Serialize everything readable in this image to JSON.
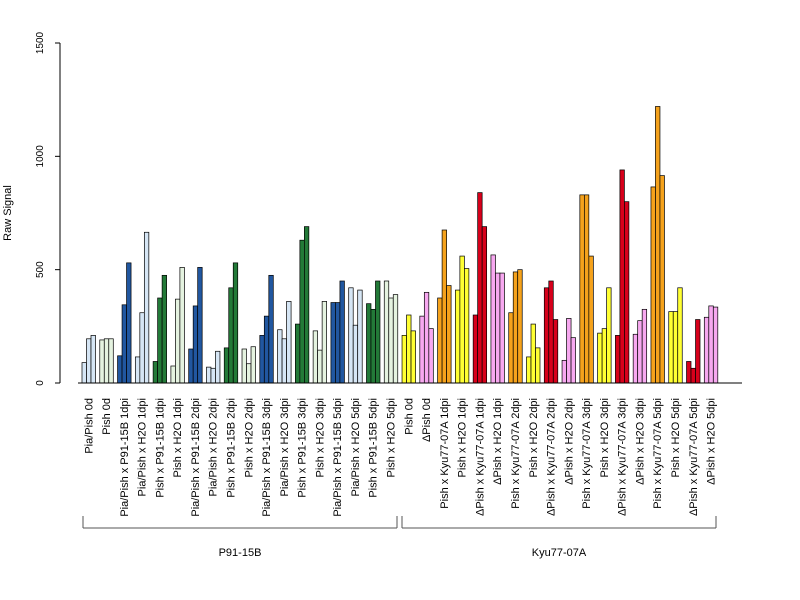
{
  "chart_data": {
    "type": "bar",
    "title": "",
    "xlabel": "",
    "ylabel": "Raw Signal",
    "ylim": [
      0,
      1500
    ],
    "yticks": [
      0,
      500,
      1000,
      1500
    ],
    "grid": false,
    "categories": [
      "Pia/Pish 0d",
      "Pish 0d",
      "Pia/Pish x P91-15B 1dpi",
      "Pia/Pish x H2O 1dpi",
      "Pish x P91-15B 1dpi",
      "Pish x H2O 1dpi",
      "Pia/Pish x P91-15B 2dpi",
      "Pia/Pish x H2O 2dpi",
      "Pish x P91-15B 2dpi",
      "Pish x H2O 2dpi",
      "Pia/Pish x P91-15B 3dpi",
      "Pia/Pish x H2O 3dpi",
      "Pish x P91-15B 3dpi",
      "Pish x H2O 3dpi",
      "Pia/Pish x P91-15B 5dpi",
      "Pia/Pish x H2O 5dpi",
      "Pish x P91-15B 5dpi",
      "Pish x H2O 5dpi",
      "Pish 0d",
      "ΔPish 0d",
      "Pish x Kyu77-07A 1dpi",
      "Pish x H2O 1dpi",
      "ΔPish x Kyu77-07A 1dpi",
      "ΔPish x H2O 1dpi",
      "Pish x Kyu77-07A 2dpi",
      "Pish x H2O 2dpi",
      "ΔPish x Kyu77-07A 2dpi",
      "ΔPish x H2O 2dpi",
      "Pish x Kyu77-07A 3dpi",
      "Pish x H2O 3dpi",
      "ΔPish x Kyu77-07A 3dpi",
      "ΔPish x H2O 3dpi",
      "Pish x Kyu77-07A 5dpi",
      "Pish x H2O 5dpi",
      "ΔPish x Kyu77-07A 5dpi",
      "ΔPish x H2O 5dpi"
    ],
    "colors": [
      "#d6e6f5",
      "#e5f3e0",
      "#2157a0",
      "#d6e6f5",
      "#237a38",
      "#e5f3e0",
      "#2157a0",
      "#d6e6f5",
      "#237a38",
      "#e5f3e0",
      "#2157a0",
      "#d6e6f5",
      "#237a38",
      "#e5f3e0",
      "#2157a0",
      "#d6e6f5",
      "#237a38",
      "#e5f3e0",
      "#ffff33",
      "#f7a8f0",
      "#f5a21c",
      "#ffff33",
      "#d7001b",
      "#f7a8f0",
      "#f5a21c",
      "#ffff33",
      "#d7001b",
      "#f7a8f0",
      "#f5a21c",
      "#ffff33",
      "#d7001b",
      "#f7a8f0",
      "#f5a21c",
      "#ffff33",
      "#d7001b",
      "#f7a8f0"
    ],
    "values": [
      [
        90,
        195,
        210
      ],
      [
        190,
        195,
        195
      ],
      [
        120,
        345,
        530
      ],
      [
        115,
        310,
        665
      ],
      [
        95,
        375,
        475
      ],
      [
        75,
        370,
        510
      ],
      [
        150,
        340,
        510
      ],
      [
        70,
        65,
        140
      ],
      [
        155,
        420,
        530
      ],
      [
        150,
        85,
        160
      ],
      [
        210,
        295,
        475
      ],
      [
        235,
        195,
        360
      ],
      [
        260,
        630,
        690
      ],
      [
        230,
        145,
        360
      ],
      [
        355,
        355,
        450
      ],
      [
        420,
        255,
        410
      ],
      [
        350,
        325,
        450
      ],
      [
        450,
        375,
        390
      ],
      [
        210,
        300,
        230
      ],
      [
        295,
        400,
        240
      ],
      [
        375,
        675,
        430
      ],
      [
        410,
        560,
        505
      ],
      [
        300,
        840,
        690
      ],
      [
        565,
        485,
        485
      ],
      [
        310,
        490,
        500
      ],
      [
        115,
        260,
        155
      ],
      [
        420,
        450,
        280
      ],
      [
        100,
        285,
        200
      ],
      [
        830,
        830,
        560
      ],
      [
        220,
        240,
        420
      ],
      [
        210,
        940,
        800
      ],
      [
        215,
        275,
        325
      ],
      [
        865,
        1220,
        915
      ],
      [
        315,
        315,
        420
      ],
      [
        95,
        65,
        280
      ],
      [
        290,
        340,
        335
      ]
    ],
    "groups": [
      {
        "label": "P91-15B",
        "start": 0,
        "end": 17
      },
      {
        "label": "Kyu77-07A",
        "start": 18,
        "end": 35
      }
    ]
  }
}
